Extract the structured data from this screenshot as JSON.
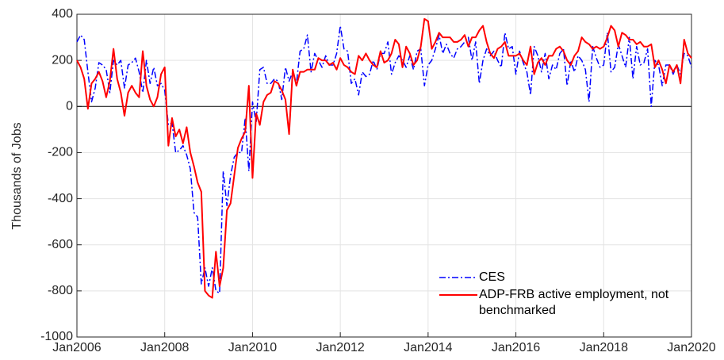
{
  "chart_data": {
    "type": "line",
    "ylabel": "Thousands of Jobs",
    "x": [
      "2006-01",
      "2006-02",
      "2006-03",
      "2006-04",
      "2006-05",
      "2006-06",
      "2006-07",
      "2006-08",
      "2006-09",
      "2006-10",
      "2006-11",
      "2006-12",
      "2007-01",
      "2007-02",
      "2007-03",
      "2007-04",
      "2007-05",
      "2007-06",
      "2007-07",
      "2007-08",
      "2007-09",
      "2007-10",
      "2007-11",
      "2007-12",
      "2008-01",
      "2008-02",
      "2008-03",
      "2008-04",
      "2008-05",
      "2008-06",
      "2008-07",
      "2008-08",
      "2008-09",
      "2008-10",
      "2008-11",
      "2008-12",
      "2009-01",
      "2009-02",
      "2009-03",
      "2009-04",
      "2009-05",
      "2009-06",
      "2009-07",
      "2009-08",
      "2009-09",
      "2009-10",
      "2009-11",
      "2009-12",
      "2010-01",
      "2010-02",
      "2010-03",
      "2010-04",
      "2010-05",
      "2010-06",
      "2010-07",
      "2010-08",
      "2010-09",
      "2010-10",
      "2010-11",
      "2010-12",
      "2011-01",
      "2011-02",
      "2011-03",
      "2011-04",
      "2011-05",
      "2011-06",
      "2011-07",
      "2011-08",
      "2011-09",
      "2011-10",
      "2011-11",
      "2011-12",
      "2012-01",
      "2012-02",
      "2012-03",
      "2012-04",
      "2012-05",
      "2012-06",
      "2012-07",
      "2012-08",
      "2012-09",
      "2012-10",
      "2012-11",
      "2012-12",
      "2013-01",
      "2013-02",
      "2013-03",
      "2013-04",
      "2013-05",
      "2013-06",
      "2013-07",
      "2013-08",
      "2013-09",
      "2013-10",
      "2013-11",
      "2013-12",
      "2014-01",
      "2014-02",
      "2014-03",
      "2014-04",
      "2014-05",
      "2014-06",
      "2014-07",
      "2014-08",
      "2014-09",
      "2014-10",
      "2014-11",
      "2014-12",
      "2015-01",
      "2015-02",
      "2015-03",
      "2015-04",
      "2015-05",
      "2015-06",
      "2015-07",
      "2015-08",
      "2015-09",
      "2015-10",
      "2015-11",
      "2015-12",
      "2016-01",
      "2016-02",
      "2016-03",
      "2016-04",
      "2016-05",
      "2016-06",
      "2016-07",
      "2016-08",
      "2016-09",
      "2016-10",
      "2016-11",
      "2016-12",
      "2017-01",
      "2017-02",
      "2017-03",
      "2017-04",
      "2017-05",
      "2017-06",
      "2017-07",
      "2017-08",
      "2017-09",
      "2017-10",
      "2017-11",
      "2017-12",
      "2018-01",
      "2018-02",
      "2018-03",
      "2018-04",
      "2018-05",
      "2018-06",
      "2018-07",
      "2018-08",
      "2018-09",
      "2018-10",
      "2018-11",
      "2018-12",
      "2019-01",
      "2019-02",
      "2019-03",
      "2019-04",
      "2019-05",
      "2019-06",
      "2019-07",
      "2019-08",
      "2019-09",
      "2019-10",
      "2019-11",
      "2019-12",
      "2020-01"
    ],
    "series": [
      {
        "name": "CES",
        "color": "#0000ff",
        "line_style": "dashdot",
        "values": [
          280,
          310,
          290,
          150,
          20,
          80,
          190,
          180,
          160,
          60,
          200,
          180,
          200,
          80,
          180,
          190,
          210,
          150,
          60,
          200,
          100,
          170,
          90,
          100,
          70,
          -80,
          -70,
          -200,
          -190,
          -170,
          -210,
          -270,
          -460,
          -480,
          -770,
          -700,
          -780,
          -700,
          -800,
          -810,
          -280,
          -430,
          -300,
          -220,
          -200,
          -200,
          -50,
          -280,
          20,
          -70,
          160,
          170,
          100,
          100,
          120,
          110,
          30,
          170,
          110,
          150,
          100,
          240,
          250,
          310,
          150,
          230,
          200,
          170,
          220,
          180,
          180,
          230,
          350,
          250,
          240,
          100,
          120,
          50,
          150,
          130,
          140,
          200,
          160,
          230,
          230,
          280,
          140,
          190,
          220,
          200,
          170,
          220,
          160,
          240,
          250,
          90,
          180,
          200,
          250,
          310,
          230,
          270,
          230,
          210,
          250,
          260,
          280,
          300,
          200,
          280,
          100,
          200,
          250,
          220,
          240,
          200,
          170,
          320,
          250,
          260,
          140,
          240,
          190,
          150,
          50,
          260,
          220,
          150,
          230,
          120,
          180,
          160,
          230,
          250,
          90,
          200,
          150,
          220,
          200,
          160,
          20,
          260,
          210,
          170,
          180,
          320,
          150,
          170,
          270,
          220,
          170,
          300,
          120,
          260,
          180,
          190,
          250,
          0,
          200,
          180,
          90,
          180,
          180,
          140,
          180,
          140,
          230,
          220,
          170
        ]
      },
      {
        "name": "ADP-FRB active employment, not benchmarked",
        "color": "#ff0000",
        "line_style": "solid",
        "values": [
          200,
          170,
          120,
          -10,
          100,
          120,
          150,
          110,
          40,
          110,
          250,
          120,
          60,
          -40,
          60,
          90,
          60,
          40,
          240,
          90,
          30,
          0,
          40,
          140,
          170,
          -170,
          -50,
          -130,
          -100,
          -160,
          -90,
          -200,
          -260,
          -330,
          -370,
          -800,
          -820,
          -830,
          -630,
          -780,
          -700,
          -450,
          -420,
          -300,
          -180,
          -140,
          -110,
          90,
          -310,
          -30,
          -80,
          20,
          50,
          60,
          110,
          100,
          70,
          30,
          -120,
          160,
          90,
          150,
          150,
          160,
          160,
          160,
          210,
          200,
          200,
          180,
          190,
          160,
          210,
          180,
          170,
          150,
          140,
          220,
          200,
          230,
          200,
          180,
          170,
          240,
          190,
          200,
          230,
          290,
          270,
          170,
          260,
          230,
          180,
          200,
          260,
          380,
          370,
          250,
          280,
          320,
          300,
          300,
          300,
          280,
          280,
          290,
          310,
          260,
          300,
          300,
          330,
          350,
          280,
          230,
          210,
          250,
          260,
          280,
          220,
          220,
          220,
          230,
          200,
          180,
          260,
          140,
          190,
          210,
          180,
          220,
          220,
          250,
          260,
          240,
          200,
          180,
          220,
          240,
          300,
          280,
          270,
          250,
          260,
          250,
          260,
          300,
          350,
          330,
          260,
          320,
          310,
          290,
          290,
          270,
          280,
          260,
          260,
          270,
          170,
          200,
          160,
          100,
          180,
          150,
          180,
          100,
          290,
          230,
          210
        ]
      }
    ],
    "xlim": [
      "2006-01",
      "2020-01"
    ],
    "xticks": [
      {
        "value": "2006-01",
        "label": "Jan2006"
      },
      {
        "value": "2008-01",
        "label": "Jan2008"
      },
      {
        "value": "2010-01",
        "label": "Jan2010"
      },
      {
        "value": "2012-01",
        "label": "Jan2012"
      },
      {
        "value": "2014-01",
        "label": "Jan2014"
      },
      {
        "value": "2016-01",
        "label": "Jan2016"
      },
      {
        "value": "2018-01",
        "label": "Jan2018"
      },
      {
        "value": "2020-01",
        "label": "Jan2020"
      }
    ],
    "ylim": [
      -1000,
      400
    ],
    "yticks": [
      -1000,
      -800,
      -600,
      -400,
      -200,
      0,
      200,
      400
    ],
    "grid": true,
    "zero_line": true,
    "legend": "lower-right"
  }
}
